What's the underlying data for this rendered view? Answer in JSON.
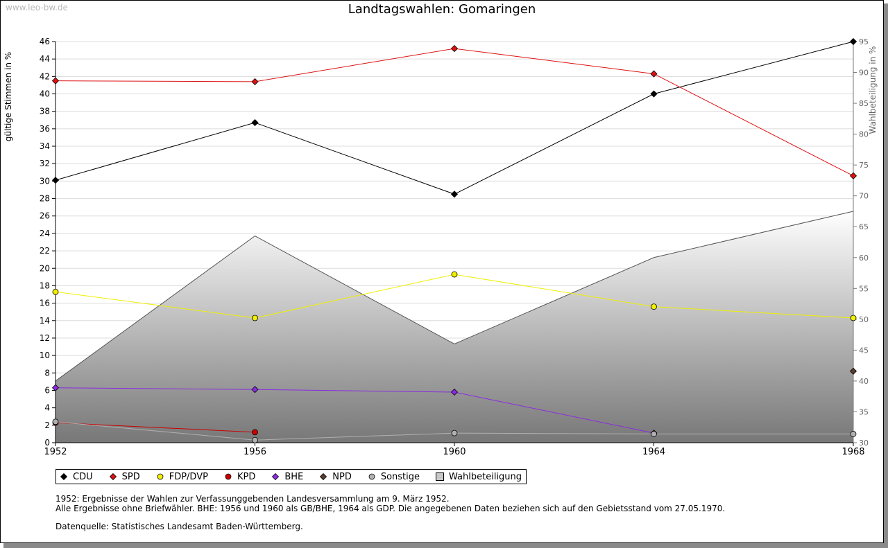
{
  "watermark": "www.leo-bw.de",
  "chart_data": {
    "type": "line",
    "title": "Landtagswahlen: Gomaringen",
    "ylabel": "gültige Stimmen in %",
    "y2label": "Wahlbeteiligung in %",
    "ylim": [
      0,
      46
    ],
    "y2lim": [
      30,
      95
    ],
    "y_ticks": [
      "0",
      "2",
      "4",
      "6",
      "8",
      "10",
      "12",
      "14",
      "16",
      "18",
      "20",
      "22",
      "24",
      "26",
      "28",
      "30",
      "32",
      "34",
      "36",
      "38",
      "40",
      "42",
      "44",
      "46"
    ],
    "y2_ticks": [
      "30",
      "35",
      "40",
      "45",
      "50",
      "55",
      "60",
      "65",
      "70",
      "75",
      "80",
      "85",
      "90",
      "95"
    ],
    "categories": [
      "1952",
      "1956",
      "1960",
      "1964",
      "1968"
    ],
    "series": [
      {
        "name": "CDU",
        "color": "#000000",
        "marker": "diamond",
        "values": [
          30.1,
          36.7,
          28.5,
          40.0,
          46.0
        ]
      },
      {
        "name": "SPD",
        "color": "#dd1111",
        "marker": "diamond",
        "values": [
          41.5,
          41.4,
          45.2,
          42.3,
          30.6
        ]
      },
      {
        "name": "FDP/DVP",
        "color": "#f0f000",
        "marker": "circle",
        "values": [
          17.3,
          14.3,
          19.3,
          15.6,
          14.3
        ]
      },
      {
        "name": "KPD",
        "color": "#cc0000",
        "marker": "circle",
        "values": [
          2.3,
          1.2,
          null,
          null,
          null
        ]
      },
      {
        "name": "BHE",
        "color": "#8a2be2",
        "marker": "diamond",
        "values": [
          6.3,
          6.1,
          5.8,
          1.1,
          null
        ]
      },
      {
        "name": "NPD",
        "color": "#5a3a2a",
        "marker": "diamond",
        "values": [
          null,
          null,
          null,
          null,
          8.2
        ]
      },
      {
        "name": "Sonstige",
        "color": "#b0b0b0",
        "marker": "circle",
        "values": [
          2.4,
          0.3,
          1.1,
          1.0,
          1.0
        ]
      }
    ],
    "area_series": {
      "name": "Wahlbeteiligung",
      "axis": "right",
      "values": [
        40.0,
        63.5,
        46.0,
        60.0,
        67.5
      ]
    },
    "legend": [
      "CDU",
      "SPD",
      "FDP/DVP",
      "KPD",
      "BHE",
      "NPD",
      "Sonstige",
      "Wahlbeteiligung"
    ]
  },
  "notes": {
    "line1": "1952: Ergebnisse der Wahlen zur Verfassunggebenden Landesversammlung am 9. März 1952.",
    "line2": "Alle Ergebnisse ohne Briefwähler. BHE: 1956 und 1960 als GB/BHE, 1964 als GDP. Die angegebenen Daten beziehen sich auf den Gebietsstand vom 27.05.1970.",
    "source": "Datenquelle: Statistisches Landesamt Baden-Württemberg."
  }
}
